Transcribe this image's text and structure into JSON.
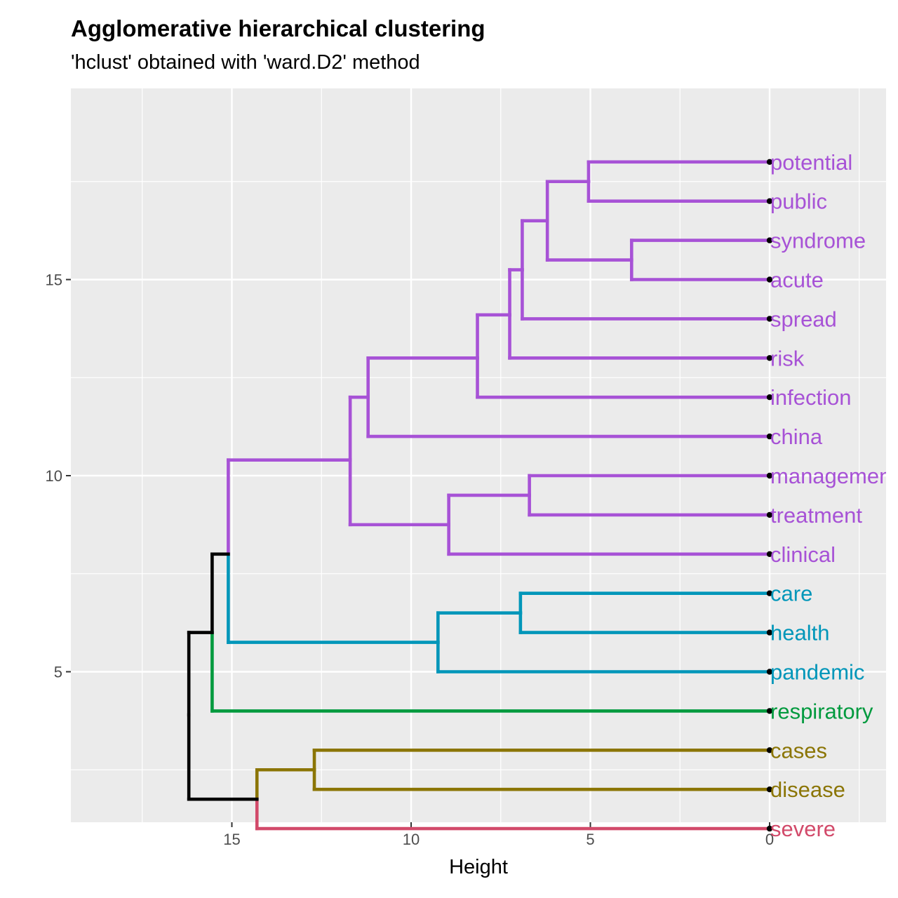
{
  "chart_data": {
    "type": "dendrogram",
    "title": "Agglomerative hierarchical clustering",
    "subtitle": "'hclust' obtained with 'ward.D2' method",
    "xlabel": "Height",
    "ylabel": "",
    "xlim": [
      19.5,
      -3.2
    ],
    "ylim": [
      0.1,
      18.5
    ],
    "x_ticks": [
      15,
      10,
      5,
      0
    ],
    "y_ticks": [
      5,
      10,
      15
    ],
    "grid": true,
    "background": "#ebebeb",
    "leaves": [
      {
        "label": "potential",
        "y": 18,
        "color": "#a752d6"
      },
      {
        "label": "public",
        "y": 17,
        "color": "#a752d6"
      },
      {
        "label": "syndrome",
        "y": 16,
        "color": "#a752d6"
      },
      {
        "label": "acute",
        "y": 15,
        "color": "#a752d6"
      },
      {
        "label": "spread",
        "y": 14,
        "color": "#a752d6"
      },
      {
        "label": "risk",
        "y": 13,
        "color": "#a752d6"
      },
      {
        "label": "infection",
        "y": 12,
        "color": "#a752d6"
      },
      {
        "label": "china",
        "y": 11,
        "color": "#a752d6"
      },
      {
        "label": "management",
        "y": 10,
        "color": "#a752d6"
      },
      {
        "label": "treatment",
        "y": 9,
        "color": "#a752d6"
      },
      {
        "label": "clinical",
        "y": 8,
        "color": "#a752d6"
      },
      {
        "label": "care",
        "y": 7,
        "color": "#0096b9"
      },
      {
        "label": "health",
        "y": 6,
        "color": "#0096b9"
      },
      {
        "label": "pandemic",
        "y": 5,
        "color": "#0096b9"
      },
      {
        "label": "respiratory",
        "y": 4,
        "color": "#009a3e"
      },
      {
        "label": "cases",
        "y": 3,
        "color": "#8b7505"
      },
      {
        "label": "disease",
        "y": 2,
        "color": "#8b7505"
      },
      {
        "label": "severe",
        "y": 1,
        "color": "#d24a6a"
      }
    ],
    "merges": [
      {
        "height": 5.05,
        "y_low": 17,
        "y_high": 18,
        "y_mid": 17.5,
        "color": "#a752d6",
        "left_x": 0,
        "right_x": 0
      },
      {
        "height": 3.85,
        "y_low": 15,
        "y_high": 16,
        "y_mid": 15.5,
        "color": "#a752d6",
        "left_x": 0,
        "right_x": 0
      },
      {
        "height": 6.2,
        "y_low": 15.5,
        "y_high": 17.5,
        "y_mid": 16.5,
        "color": "#a752d6",
        "left_x": 3.85,
        "right_x": 5.05
      },
      {
        "height": 6.9,
        "y_low": 14,
        "y_high": 16.5,
        "y_mid": 15.25,
        "color": "#a752d6",
        "left_x": 0,
        "right_x": 6.2
      },
      {
        "height": 7.25,
        "y_low": 13,
        "y_high": 15.25,
        "y_mid": 14.1,
        "color": "#a752d6",
        "left_x": 0,
        "right_x": 6.9
      },
      {
        "height": 8.15,
        "y_low": 12,
        "y_high": 14.1,
        "y_mid": 13.0,
        "color": "#a752d6",
        "left_x": 0,
        "right_x": 7.25
      },
      {
        "height": 11.2,
        "y_low": 11,
        "y_high": 13.0,
        "y_mid": 12.0,
        "color": "#a752d6",
        "left_x": 0,
        "right_x": 8.15
      },
      {
        "height": 6.7,
        "y_low": 9,
        "y_high": 10,
        "y_mid": 9.5,
        "color": "#a752d6",
        "left_x": 0,
        "right_x": 0
      },
      {
        "height": 8.95,
        "y_low": 8,
        "y_high": 9.5,
        "y_mid": 8.75,
        "color": "#a752d6",
        "left_x": 0,
        "right_x": 6.7
      },
      {
        "height": 11.7,
        "y_low": 8.75,
        "y_high": 12.0,
        "y_mid": 10.4,
        "color": "#a752d6",
        "left_x": 8.95,
        "right_x": 11.2
      },
      {
        "height": 6.95,
        "y_low": 6,
        "y_high": 7,
        "y_mid": 6.5,
        "color": "#0096b9",
        "left_x": 0,
        "right_x": 0
      },
      {
        "height": 9.25,
        "y_low": 5,
        "y_high": 6.5,
        "y_mid": 5.75,
        "color": "#0096b9",
        "left_x": 0,
        "right_x": 6.95
      },
      {
        "height": 12.7,
        "y_low": 2,
        "y_high": 3,
        "y_mid": 2.5,
        "color": "#8b7505",
        "left_x": 0,
        "right_x": 0
      },
      {
        "height": 14.3,
        "y_low": 1,
        "y_high": 2.5,
        "y_mid": 1.75,
        "color": "#8b7505",
        "low_color": "#d24a6a",
        "left_x": 0,
        "right_x": 12.7
      },
      {
        "height": 15.1,
        "y_low": 5.75,
        "y_high": 10.4,
        "y_mid": 8.0,
        "color": "#a752d6",
        "low_color": "#0096b9",
        "left_x": 9.25,
        "right_x": 11.7
      },
      {
        "height": 15.55,
        "y_low": 4,
        "y_high": 8.0,
        "y_mid": 6.0,
        "color": "#000000",
        "low_color": "#009a3e",
        "left_x": 0,
        "right_x": 15.1
      },
      {
        "height": 16.2,
        "y_low": 1.75,
        "y_high": 6.0,
        "y_mid": 3.9,
        "color": "#000000",
        "left_x": 14.3,
        "right_x": 15.55
      }
    ]
  }
}
